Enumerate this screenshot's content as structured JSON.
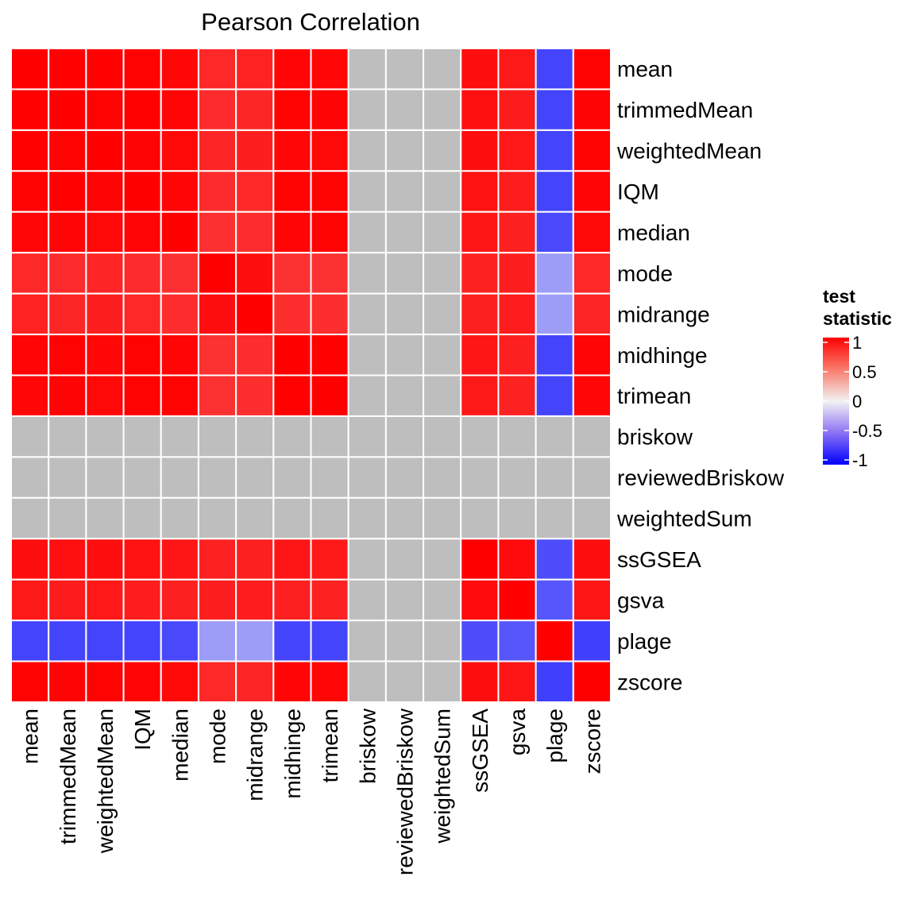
{
  "chart_data": {
    "type": "heatmap",
    "title": "Pearson Correlation",
    "rows": [
      "mean",
      "trimmedMean",
      "weightedMean",
      "IQM",
      "median",
      "mode",
      "midrange",
      "midhinge",
      "trimean",
      "briskow",
      "reviewedBriskow",
      "weightedSum",
      "ssGSEA",
      "gsva",
      "plage",
      "zscore"
    ],
    "columns": [
      "mean",
      "trimmedMean",
      "weightedMean",
      "IQM",
      "median",
      "mode",
      "midrange",
      "midhinge",
      "trimean",
      "briskow",
      "reviewedBriskow",
      "weightedSum",
      "ssGSEA",
      "gsva",
      "plage",
      "zscore"
    ],
    "values": [
      [
        1.0,
        0.99,
        0.99,
        0.98,
        0.95,
        0.72,
        0.75,
        0.96,
        0.95,
        null,
        null,
        null,
        0.9,
        0.82,
        -0.55,
        0.98
      ],
      [
        0.99,
        1.0,
        0.98,
        0.99,
        0.96,
        0.7,
        0.73,
        0.98,
        0.97,
        null,
        null,
        null,
        0.88,
        0.8,
        -0.55,
        0.97
      ],
      [
        0.99,
        0.98,
        1.0,
        0.97,
        0.94,
        0.74,
        0.78,
        0.95,
        0.94,
        null,
        null,
        null,
        0.9,
        0.83,
        -0.55,
        0.98
      ],
      [
        0.98,
        0.99,
        0.97,
        1.0,
        0.96,
        0.7,
        0.72,
        0.98,
        0.98,
        null,
        null,
        null,
        0.87,
        0.79,
        -0.55,
        0.96
      ],
      [
        0.95,
        0.96,
        0.94,
        0.96,
        1.0,
        0.67,
        0.69,
        0.96,
        0.98,
        null,
        null,
        null,
        0.84,
        0.77,
        -0.52,
        0.94
      ],
      [
        0.72,
        0.7,
        0.74,
        0.7,
        0.67,
        1.0,
        0.9,
        0.66,
        0.66,
        null,
        null,
        null,
        0.76,
        0.78,
        -0.15,
        0.72
      ],
      [
        0.75,
        0.73,
        0.78,
        0.72,
        0.69,
        0.9,
        1.0,
        0.68,
        0.68,
        null,
        null,
        null,
        0.77,
        0.79,
        -0.15,
        0.74
      ],
      [
        0.96,
        0.98,
        0.95,
        0.98,
        0.96,
        0.66,
        0.68,
        1.0,
        0.99,
        null,
        null,
        null,
        0.84,
        0.77,
        -0.55,
        0.96
      ],
      [
        0.95,
        0.97,
        0.94,
        0.98,
        0.98,
        0.66,
        0.68,
        0.99,
        1.0,
        null,
        null,
        null,
        0.82,
        0.76,
        -0.55,
        0.95
      ],
      [
        null,
        null,
        null,
        null,
        null,
        null,
        null,
        null,
        null,
        null,
        null,
        null,
        null,
        null,
        null,
        null
      ],
      [
        null,
        null,
        null,
        null,
        null,
        null,
        null,
        null,
        null,
        null,
        null,
        null,
        null,
        null,
        null,
        null
      ],
      [
        null,
        null,
        null,
        null,
        null,
        null,
        null,
        null,
        null,
        null,
        null,
        null,
        null,
        null,
        null,
        null
      ],
      [
        0.9,
        0.88,
        0.9,
        0.87,
        0.84,
        0.76,
        0.77,
        0.84,
        0.82,
        null,
        null,
        null,
        1.0,
        0.92,
        -0.5,
        0.9
      ],
      [
        0.82,
        0.8,
        0.83,
        0.79,
        0.77,
        0.78,
        0.79,
        0.77,
        0.76,
        null,
        null,
        null,
        0.92,
        1.0,
        -0.45,
        0.84
      ],
      [
        -0.55,
        -0.55,
        -0.55,
        -0.55,
        -0.52,
        -0.15,
        -0.15,
        -0.55,
        -0.55,
        null,
        null,
        null,
        -0.5,
        -0.45,
        1.0,
        -0.58
      ],
      [
        0.98,
        0.97,
        0.98,
        0.96,
        0.94,
        0.72,
        0.74,
        0.96,
        0.95,
        null,
        null,
        null,
        0.9,
        0.84,
        -0.58,
        1.0
      ]
    ],
    "legend": {
      "title_lines": [
        "test",
        "statistic"
      ],
      "position": "right",
      "min": -1,
      "max": 1,
      "ticks": [
        1,
        0.5,
        0,
        -0.5,
        -1
      ],
      "tick_labels": [
        "1",
        "0.5",
        "0",
        "-0.5",
        "-1"
      ]
    },
    "colors": {
      "high": "#ff0000",
      "mid": "#f2f2f2",
      "low": "#0000ff",
      "na": "#bebebe",
      "cell_border": "#ffffff",
      "text": "#000000"
    }
  }
}
